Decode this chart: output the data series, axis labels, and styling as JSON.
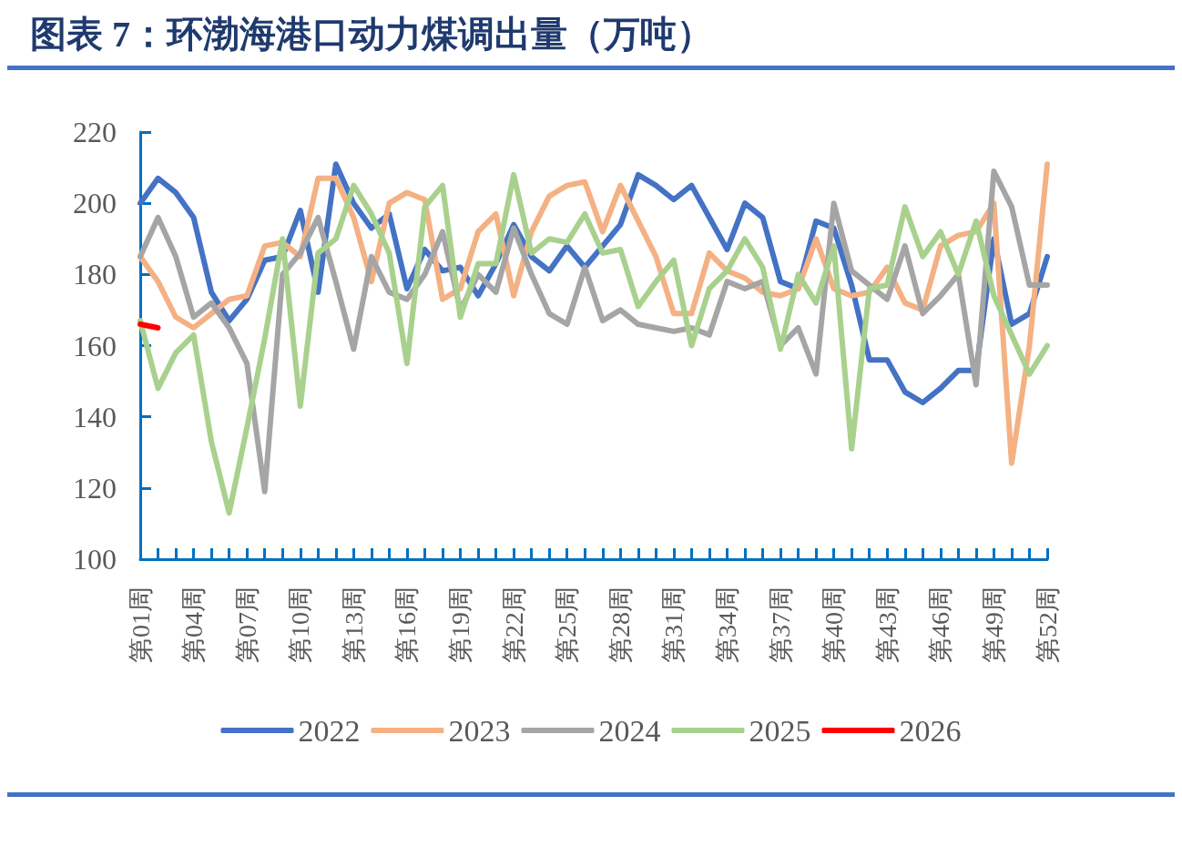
{
  "chart_data": {
    "type": "line",
    "title": "图表 7：环渤海港口动力煤调出量（万吨）",
    "categories": [
      "第01周",
      null,
      null,
      "第04周",
      null,
      null,
      "第07周",
      null,
      null,
      "第10周",
      null,
      null,
      "第13周",
      null,
      null,
      "第16周",
      null,
      null,
      "第19周",
      null,
      null,
      "第22周",
      null,
      null,
      "第25周",
      null,
      null,
      "第28周",
      null,
      null,
      "第31周",
      null,
      null,
      "第34周",
      null,
      null,
      "第37周",
      null,
      null,
      "第40周",
      null,
      null,
      "第43周",
      null,
      null,
      "第46周",
      null,
      null,
      "第49周",
      null,
      null,
      "第52周"
    ],
    "series": [
      {
        "name": "2022",
        "color": "#4472c4",
        "values": [
          200,
          207,
          203,
          196,
          175,
          167,
          173,
          184,
          185,
          198,
          175,
          211,
          200,
          193,
          197,
          176,
          187,
          181,
          182,
          174,
          183,
          194,
          185,
          181,
          188,
          182,
          188,
          194,
          208,
          205,
          201,
          205,
          196,
          187,
          200,
          196,
          178,
          176,
          195,
          193,
          177,
          156,
          156,
          147,
          144,
          148,
          153,
          153,
          190,
          166,
          169,
          185
        ]
      },
      {
        "name": "2023",
        "color": "#f4b183",
        "values": [
          185,
          178,
          168,
          165,
          169,
          173,
          174,
          188,
          189,
          185,
          207,
          207,
          196,
          178,
          200,
          203,
          201,
          173,
          176,
          192,
          197,
          174,
          192,
          202,
          205,
          206,
          192,
          205,
          195,
          185,
          169,
          169,
          186,
          181,
          179,
          175,
          174,
          176,
          190,
          176,
          174,
          175,
          182,
          172,
          170,
          188,
          191,
          192,
          200,
          127,
          160,
          211
        ]
      },
      {
        "name": "2024",
        "color": "#a5a5a5",
        "values": [
          185,
          196,
          185,
          168,
          172,
          165,
          155,
          119,
          180,
          186,
          196,
          178,
          159,
          185,
          175,
          173,
          180,
          192,
          170,
          180,
          175,
          193,
          180,
          169,
          166,
          182,
          167,
          170,
          166,
          165,
          164,
          165,
          163,
          178,
          176,
          178,
          160,
          165,
          152,
          200,
          181,
          177,
          173,
          188,
          169,
          174,
          180,
          149,
          209,
          199,
          177,
          177
        ]
      },
      {
        "name": "2025",
        "color": "#a9d18e",
        "values": [
          167,
          148,
          158,
          163,
          133,
          113,
          137,
          162,
          190,
          143,
          186,
          190,
          205,
          197,
          186,
          155,
          199,
          205,
          168,
          183,
          183,
          208,
          186,
          190,
          189,
          197,
          186,
          187,
          171,
          178,
          184,
          160,
          176,
          181,
          190,
          182,
          159,
          180,
          172,
          188,
          131,
          176,
          177,
          199,
          185,
          192,
          180,
          195,
          174,
          163,
          152,
          160
        ]
      },
      {
        "name": "2026",
        "color": "#ff0000",
        "values": [
          166,
          165,
          null,
          null,
          null,
          null,
          null,
          null,
          null,
          null,
          null,
          null,
          null,
          null,
          null,
          null,
          null,
          null,
          null,
          null,
          null,
          null,
          null,
          null,
          null,
          null,
          null,
          null,
          null,
          null,
          null,
          null,
          null,
          null,
          null,
          null,
          null,
          null,
          null,
          null,
          null,
          null,
          null,
          null,
          null,
          null,
          null,
          null,
          null,
          null,
          null,
          null
        ]
      }
    ],
    "ylim": [
      100,
      220
    ],
    "yticks": [
      100,
      120,
      140,
      160,
      180,
      200,
      220
    ],
    "grid": false,
    "legend": "bottom",
    "line_style": "solid",
    "marker": "none"
  }
}
